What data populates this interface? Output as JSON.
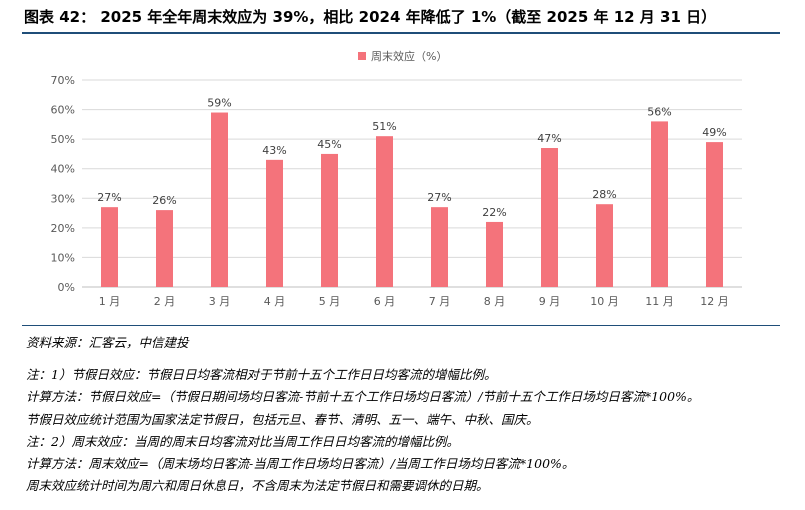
{
  "header": {
    "title": "图表 42：  2025 年全年周末效应为 39%，相比 2024 年降低了 1%（截至 2025 年 12 月 31 日）"
  },
  "chart_data": {
    "type": "bar",
    "categories": [
      "1 月",
      "2 月",
      "3 月",
      "4 月",
      "5 月",
      "6 月",
      "7 月",
      "8 月",
      "9 月",
      "10 月",
      "11 月",
      "12 月"
    ],
    "series": [
      {
        "name": "周末效应（%）",
        "values": [
          27,
          26,
          59,
          43,
          45,
          51,
          27,
          22,
          47,
          28,
          56,
          49
        ]
      }
    ],
    "data_labels": [
      "27%",
      "26%",
      "59%",
      "43%",
      "45%",
      "51%",
      "27%",
      "22%",
      "47%",
      "28%",
      "56%",
      "49%"
    ],
    "y_ticks": [
      "0%",
      "10%",
      "20%",
      "30%",
      "40%",
      "50%",
      "60%",
      "70%"
    ],
    "ylim": [
      0,
      70
    ],
    "grid": true,
    "legend_position": "top-center",
    "bar_color": "#f4737b"
  },
  "footer": {
    "source": "资料来源：汇客云，中信建投",
    "notes": [
      "注：1）节假日效应：节假日日均客流相对于节前十五个工作日日均客流的增幅比例。",
      "计算方法：节假日效应=（节假日期间场均日客流-节前十五个工作日场均日客流）/节前十五个工作日场均日客流*100%。",
      "节假日效应统计范围为国家法定节假日，包括元旦、春节、清明、五一、端午、中秋、国庆。",
      "注：2）周末效应：当周的周末日均客流对比当周工作日日均客流的增幅比例。",
      "计算方法：周末效应=（周末场均日客流-当周工作日场均日客流）/当周工作日场均日客流*100%。",
      "周末效应统计时间为周六和周日休息日，不含周末为法定节假日和需要调休的日期。"
    ]
  }
}
